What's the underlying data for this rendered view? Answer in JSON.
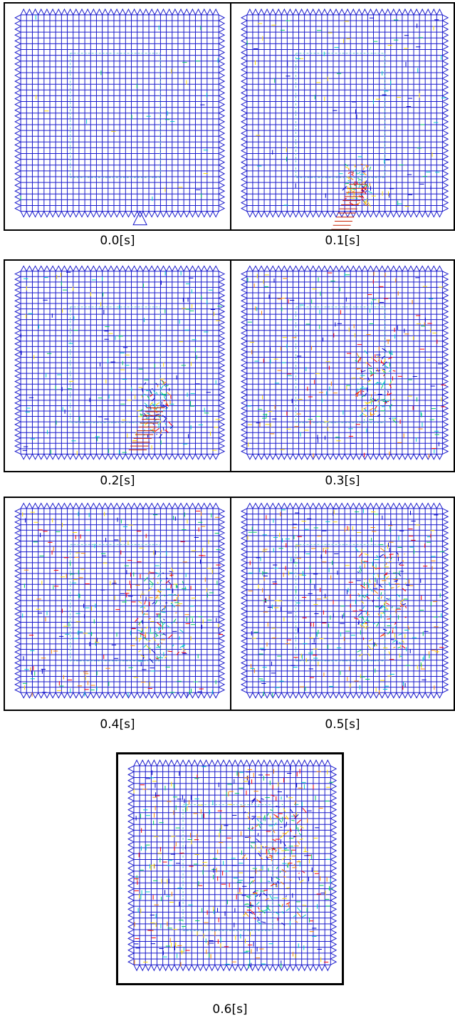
{
  "panels": [
    {
      "caption": "0.0[s]"
    },
    {
      "caption": "0.1[s]"
    },
    {
      "caption": "0.2[s]"
    },
    {
      "caption": "0.3[s]"
    },
    {
      "caption": "0.4[s]"
    },
    {
      "caption": "0.5[s]"
    },
    {
      "caption": "0.6[s]"
    }
  ]
}
